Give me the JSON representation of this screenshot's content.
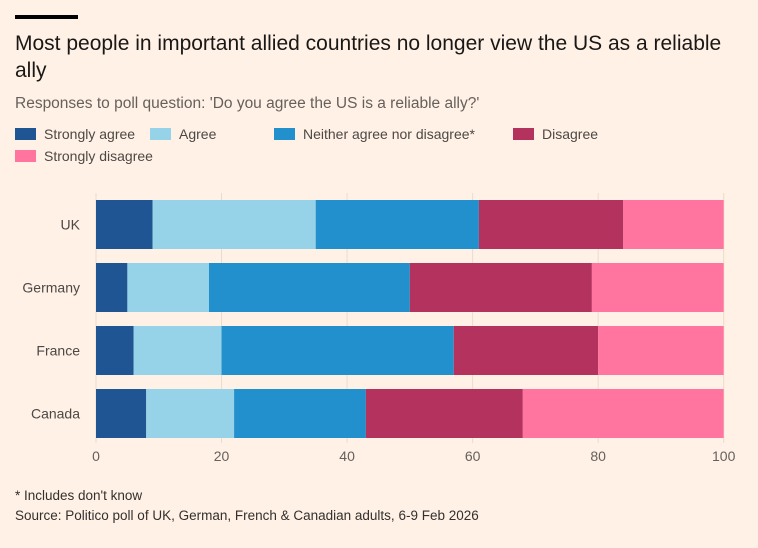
{
  "title": "Most people in important allied countries no longer view the US as a reliable ally",
  "subtitle": "Responses to poll question: 'Do you agree the US is a reliable ally?'",
  "footnote": "* Includes don't know",
  "source": "Source: Politico poll of UK, German, French & Canadian adults, 6-9 Feb 2026",
  "chart_data": {
    "type": "bar",
    "orientation": "horizontal",
    "stacked": true,
    "categories": [
      "UK",
      "Germany",
      "France",
      "Canada"
    ],
    "series": [
      {
        "name": "Strongly agree",
        "color": "#1f5592",
        "values": [
          9,
          5,
          6,
          8
        ]
      },
      {
        "name": "Agree",
        "color": "#96d2e8",
        "values": [
          26,
          13,
          14,
          14
        ]
      },
      {
        "name": "Neither agree nor disagree*",
        "color": "#2290cd",
        "values": [
          26,
          32,
          37,
          21
        ]
      },
      {
        "name": "Disagree",
        "color": "#b3325e",
        "values": [
          23,
          29,
          23,
          25
        ]
      },
      {
        "name": "Strongly disagree",
        "color": "#ff75a0",
        "values": [
          16,
          21,
          20,
          32
        ]
      }
    ],
    "xlim": [
      0,
      100
    ],
    "xticks": [
      "0",
      "20",
      "40",
      "60",
      "80",
      "100"
    ],
    "grid": true,
    "legend": "top"
  }
}
